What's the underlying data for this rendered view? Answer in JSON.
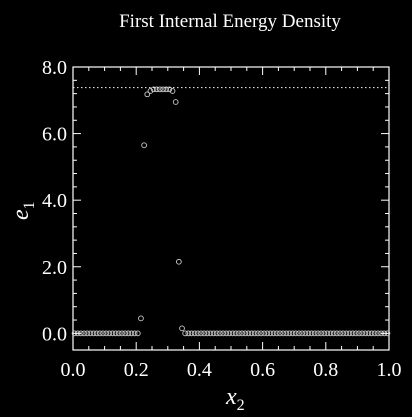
{
  "chart_data": {
    "type": "scatter",
    "title": "First Internal Energy Density",
    "xlabel": "x",
    "xlabel_sub": "2",
    "ylabel": "e",
    "ylabel_sub": "1",
    "xlim": [
      0.0,
      1.0
    ],
    "ylim": [
      -0.5,
      8.0
    ],
    "x_ticks": [
      0.0,
      0.2,
      0.4,
      0.6,
      0.8,
      1.0
    ],
    "x_tick_labels": [
      "0.0",
      "0.2",
      "0.4",
      "0.6",
      "0.8",
      "1.0"
    ],
    "y_ticks": [
      0.0,
      2.0,
      4.0,
      6.0,
      8.0
    ],
    "y_tick_labels": [
      "0.0",
      "2.0",
      "4.0",
      "6.0",
      "8.0"
    ],
    "reference_line": {
      "y": 7.38,
      "style": "dotted"
    },
    "grid": false,
    "colors": {
      "background": "#000000",
      "foreground": "#ffffff",
      "marker": "#cccccc"
    },
    "series": [
      {
        "marker": "open-circle",
        "points": [
          [
            0.005,
            0
          ],
          [
            0.015,
            0
          ],
          [
            0.025,
            0
          ],
          [
            0.035,
            0
          ],
          [
            0.045,
            0
          ],
          [
            0.055,
            0
          ],
          [
            0.065,
            0
          ],
          [
            0.075,
            0
          ],
          [
            0.085,
            0
          ],
          [
            0.095,
            0
          ],
          [
            0.105,
            0
          ],
          [
            0.115,
            0
          ],
          [
            0.125,
            0
          ],
          [
            0.135,
            0
          ],
          [
            0.145,
            0
          ],
          [
            0.155,
            0
          ],
          [
            0.165,
            0
          ],
          [
            0.175,
            0
          ],
          [
            0.185,
            0
          ],
          [
            0.195,
            0
          ],
          [
            0.205,
            0
          ],
          [
            0.215,
            0.45
          ],
          [
            0.225,
            5.65
          ],
          [
            0.235,
            7.18
          ],
          [
            0.245,
            7.28
          ],
          [
            0.255,
            7.33
          ],
          [
            0.265,
            7.33
          ],
          [
            0.275,
            7.33
          ],
          [
            0.285,
            7.33
          ],
          [
            0.295,
            7.33
          ],
          [
            0.305,
            7.33
          ],
          [
            0.315,
            7.28
          ],
          [
            0.325,
            6.95
          ],
          [
            0.335,
            2.15
          ],
          [
            0.345,
            0.15
          ],
          [
            0.355,
            0.0
          ],
          [
            0.365,
            0
          ],
          [
            0.375,
            0
          ],
          [
            0.385,
            0
          ],
          [
            0.395,
            0
          ],
          [
            0.405,
            0
          ],
          [
            0.415,
            0
          ],
          [
            0.425,
            0
          ],
          [
            0.435,
            0
          ],
          [
            0.445,
            0
          ],
          [
            0.455,
            0
          ],
          [
            0.465,
            0
          ],
          [
            0.475,
            0
          ],
          [
            0.485,
            0
          ],
          [
            0.495,
            0
          ],
          [
            0.505,
            0
          ],
          [
            0.515,
            0
          ],
          [
            0.525,
            0
          ],
          [
            0.535,
            0
          ],
          [
            0.545,
            0
          ],
          [
            0.555,
            0
          ],
          [
            0.565,
            0
          ],
          [
            0.575,
            0
          ],
          [
            0.585,
            0
          ],
          [
            0.595,
            0
          ],
          [
            0.605,
            0
          ],
          [
            0.615,
            0
          ],
          [
            0.625,
            0
          ],
          [
            0.635,
            0
          ],
          [
            0.645,
            0
          ],
          [
            0.655,
            0
          ],
          [
            0.665,
            0
          ],
          [
            0.675,
            0
          ],
          [
            0.685,
            0
          ],
          [
            0.695,
            0
          ],
          [
            0.705,
            0
          ],
          [
            0.715,
            0
          ],
          [
            0.725,
            0
          ],
          [
            0.735,
            0
          ],
          [
            0.745,
            0
          ],
          [
            0.755,
            0
          ],
          [
            0.765,
            0
          ],
          [
            0.775,
            0
          ],
          [
            0.785,
            0
          ],
          [
            0.795,
            0
          ],
          [
            0.805,
            0
          ],
          [
            0.815,
            0
          ],
          [
            0.825,
            0
          ],
          [
            0.835,
            0
          ],
          [
            0.845,
            0
          ],
          [
            0.855,
            0
          ],
          [
            0.865,
            0
          ],
          [
            0.875,
            0
          ],
          [
            0.885,
            0
          ],
          [
            0.895,
            0
          ],
          [
            0.905,
            0
          ],
          [
            0.915,
            0
          ],
          [
            0.925,
            0
          ],
          [
            0.935,
            0
          ],
          [
            0.945,
            0
          ],
          [
            0.955,
            0
          ],
          [
            0.965,
            0
          ],
          [
            0.975,
            0
          ],
          [
            0.985,
            0
          ],
          [
            0.995,
            0
          ]
        ]
      }
    ]
  }
}
